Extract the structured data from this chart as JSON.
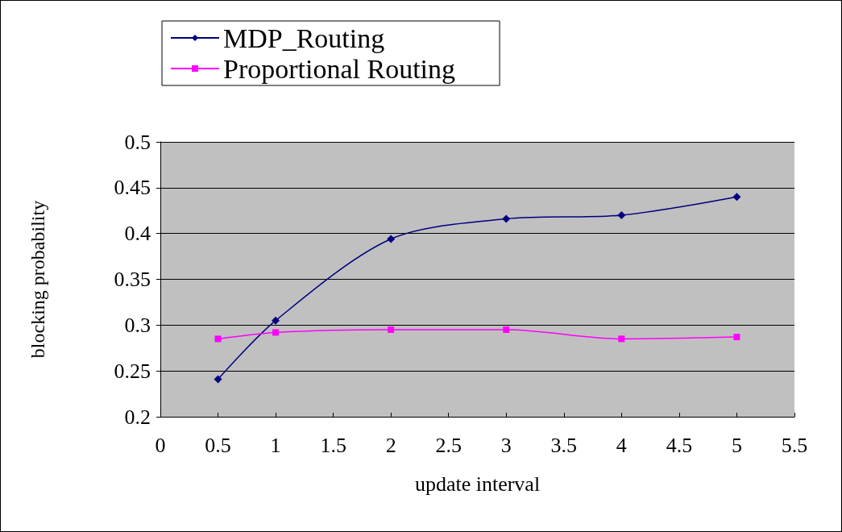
{
  "chart_data": {
    "type": "line",
    "xlabel": "update interval",
    "ylabel": "blocking probability",
    "xlim": [
      0,
      5.5
    ],
    "xticks": [
      0,
      0.5,
      1,
      1.5,
      2,
      2.5,
      3,
      3.5,
      4,
      4.5,
      5,
      5.5
    ],
    "ylim": [
      0.2,
      0.5
    ],
    "yticks": [
      0.2,
      0.25,
      0.3,
      0.35,
      0.4,
      0.45,
      0.5
    ],
    "grid": "y",
    "legend": "top left",
    "series": [
      {
        "name": "MDP_Routing",
        "color": "#000080",
        "marker": "diamond",
        "x": [
          0.5,
          1,
          2,
          3,
          4,
          5
        ],
        "values": [
          0.241,
          0.305,
          0.394,
          0.416,
          0.42,
          0.44
        ]
      },
      {
        "name": "Proportional Routing",
        "color": "#ff00ff",
        "marker": "square",
        "x": [
          0.5,
          1,
          2,
          3,
          4,
          5
        ],
        "values": [
          0.285,
          0.292,
          0.295,
          0.295,
          0.285,
          0.287
        ]
      }
    ]
  }
}
